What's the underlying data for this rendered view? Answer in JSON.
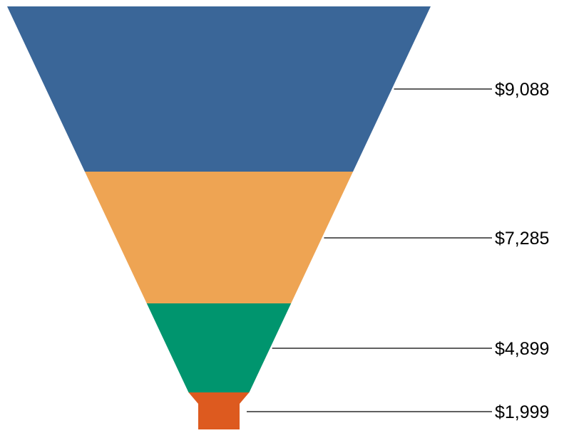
{
  "chart_data": {
    "type": "funnel",
    "title": "",
    "values": [
      9088,
      7285,
      4899,
      1999
    ],
    "labels": [
      "$9,088",
      "$7,285",
      "$4,899",
      "$1,999"
    ],
    "colors": [
      "#3a6698",
      "#eea453",
      "#00956e",
      "#dd5a1f"
    ],
    "label_placement": "right-with-leader-lines",
    "background": "#ffffff"
  }
}
